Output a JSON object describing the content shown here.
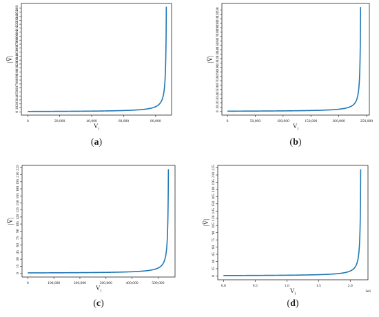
{
  "chart_data": [
    {
      "type": "line",
      "panel": "(a)",
      "xlabel": "V",
      "xlabel_sub": "i",
      "ylabel": "|V̅|",
      "xlim": [
        -4000,
        90000
      ],
      "ylim": [
        -8,
        272
      ],
      "xticks": [
        0,
        20000,
        40000,
        60000,
        80000
      ],
      "xtick_labels": [
        "0",
        "20,000",
        "40,000",
        "60,000",
        "80,000"
      ],
      "yticks": [
        0,
        10,
        20,
        30,
        40,
        50,
        60,
        70,
        80,
        90,
        100,
        110,
        120,
        130,
        140,
        150,
        160,
        170,
        180,
        190,
        200,
        210,
        220,
        230,
        240,
        250,
        260
      ],
      "asymptote": 87050,
      "x_start": 0,
      "x_end": 86700,
      "series": [
        {
          "color": "#1f77b4"
        }
      ]
    },
    {
      "type": "line",
      "panel": "(b)",
      "xlabel": "V",
      "xlabel_sub": "i",
      "ylabel": "|V̅|",
      "xlim": [
        -10000,
        255000
      ],
      "ylim": [
        -8,
        245
      ],
      "xticks": [
        0,
        50000,
        100000,
        150000,
        200000,
        250000
      ],
      "xtick_labels": [
        "0",
        "50,000",
        "100,000",
        "150,000",
        "200,000",
        "250,000"
      ],
      "yticks": [
        0,
        10,
        20,
        30,
        40,
        50,
        60,
        70,
        80,
        90,
        100,
        110,
        120,
        130,
        140,
        150,
        160,
        170,
        180,
        190,
        200,
        210,
        220,
        230
      ],
      "asymptote": 240100,
      "x_start": 0,
      "x_end": 239200,
      "series": [
        {
          "color": "#1f77b4"
        }
      ]
    },
    {
      "type": "line",
      "panel": "(c)",
      "xlabel": "V",
      "xlabel_sub": "i",
      "ylabel": "|V̅|",
      "xlim": [
        -22000,
        565000
      ],
      "ylim": [
        -8,
        230
      ],
      "xticks": [
        0,
        100000,
        200000,
        300000,
        400000,
        500000
      ],
      "xtick_labels": [
        "0",
        "100,000",
        "200,000",
        "300,000",
        "400,000",
        "500,000"
      ],
      "yticks": [
        0,
        15,
        30,
        45,
        60,
        75,
        90,
        105,
        120,
        135,
        150,
        165,
        180,
        195,
        210,
        225
      ],
      "asymptote": 541600,
      "x_start": 0,
      "x_end": 539500,
      "series": [
        {
          "color": "#1f77b4"
        }
      ]
    },
    {
      "type": "line",
      "panel": "(d)",
      "xlabel": "V",
      "xlabel_sub": "i",
      "ylabel": "|V̅|",
      "x_multiplier": "1e6",
      "xlim": [
        -0.09,
        2.28
      ],
      "ylim": [
        -8,
        230
      ],
      "xticks": [
        0.0,
        0.5,
        1.0,
        1.5,
        2.0
      ],
      "xtick_labels": [
        "0.0",
        "0.5",
        "1.0",
        "1.5",
        "2.0"
      ],
      "yticks": [
        0,
        15,
        30,
        45,
        60,
        75,
        90,
        105,
        120,
        135,
        150,
        165,
        180,
        195,
        210,
        225
      ],
      "asymptote": 2.173,
      "x_start": 0,
      "x_end": 2.165,
      "series": [
        {
          "color": "#1f77b4"
        }
      ]
    }
  ]
}
